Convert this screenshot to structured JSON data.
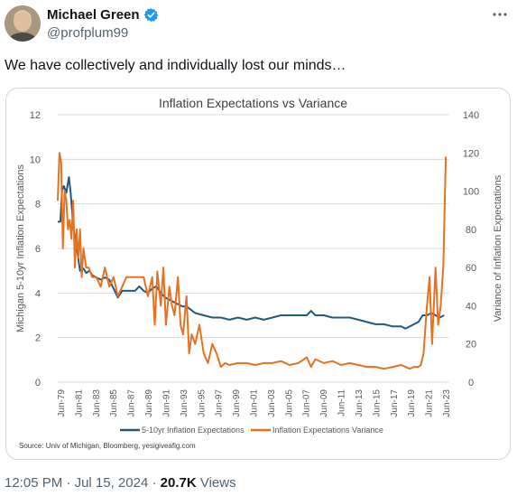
{
  "author": {
    "name": "Michael Green",
    "handle": "@profplum99",
    "verified_color": "#1d9bf0"
  },
  "menu_icon": "more-horizontal-icon",
  "tweet": {
    "text": "We have collectively and individually lost our minds…"
  },
  "meta": {
    "time": "12:05 PM",
    "sep1": " · ",
    "date": "Jul 15, 2024",
    "sep2": " · ",
    "views": "20.7K",
    "views_label": " Views"
  },
  "chart_data": {
    "type": "line",
    "title": "Inflation Expectations vs Variance",
    "ylabel_left": "Michigan 5-10yr Inflation Expectations",
    "ylabel_right": "Variance of Inflation Expectations",
    "y_left_ticks": [
      "0",
      "2",
      "4",
      "6",
      "8",
      "10",
      "12"
    ],
    "y_right_ticks": [
      "0",
      "20",
      "40",
      "60",
      "80",
      "100",
      "120",
      "140"
    ],
    "ylim_left": [
      0,
      12
    ],
    "ylim_right": [
      0,
      140
    ],
    "x_ticks": [
      "Jun-79",
      "Jun-81",
      "Jun-83",
      "Jun-85",
      "Jun-87",
      "Jun-89",
      "Jun-91",
      "Jun-93",
      "Jun-95",
      "Jun-97",
      "Jun-99",
      "Jun-01",
      "Jun-03",
      "Jun-05",
      "Jun-07",
      "Jun-09",
      "Jun-11",
      "Jun-13",
      "Jun-15",
      "Jun-17",
      "Jun-19",
      "Jun-21",
      "Jun-23"
    ],
    "xlim": [
      1979.0,
      2024.5
    ],
    "grid": true,
    "legend_position": "bottom",
    "source": "Source: Univ of Michigan, Bloomberg, yesigiveafig.com",
    "series": [
      {
        "name": "5-10yr Inflation Expectations",
        "axis": "left",
        "color": "#1f5a82",
        "x": [
          1979.0,
          1979.3,
          1979.5,
          1979.7,
          1980.0,
          1980.3,
          1980.5,
          1980.8,
          1981.0,
          1981.3,
          1981.6,
          1982.0,
          1982.3,
          1982.7,
          1983.0,
          1983.5,
          1984.0,
          1984.5,
          1985.0,
          1985.5,
          1986.0,
          1986.5,
          1987.0,
          1987.5,
          1988.0,
          1988.5,
          1989.0,
          1989.5,
          1990.0,
          1990.5,
          1991.0,
          1991.5,
          1992.0,
          1992.5,
          1993.0,
          1993.5,
          1994.0,
          1995.0,
          1996.0,
          1997.0,
          1998.0,
          1999.0,
          2000.0,
          2001.0,
          2002.0,
          2003.0,
          2004.0,
          2005.0,
          2006.0,
          2007.0,
          2008.0,
          2008.5,
          2009.0,
          2010.0,
          2011.0,
          2012.0,
          2013.0,
          2014.0,
          2015.0,
          2016.0,
          2017.0,
          2018.0,
          2019.0,
          2019.5,
          2020.0,
          2020.5,
          2021.0,
          2021.5,
          2022.0,
          2022.5,
          2023.0,
          2023.5,
          2024.0
        ],
        "y": [
          7.2,
          7.2,
          8.6,
          8.8,
          8.5,
          9.2,
          8.5,
          7.0,
          6.5,
          5.8,
          5.0,
          5.1,
          4.9,
          5.0,
          4.8,
          4.7,
          4.6,
          4.7,
          4.6,
          4.2,
          3.8,
          4.1,
          4.1,
          4.1,
          4.1,
          4.3,
          4.1,
          4.0,
          4.2,
          4.3,
          4.0,
          3.8,
          3.7,
          3.6,
          3.5,
          3.4,
          3.4,
          3.1,
          3.0,
          2.9,
          2.9,
          2.8,
          2.9,
          2.8,
          2.9,
          2.8,
          2.9,
          3.0,
          3.0,
          3.0,
          3.0,
          3.2,
          3.0,
          3.0,
          2.9,
          2.9,
          2.9,
          2.8,
          2.7,
          2.6,
          2.6,
          2.5,
          2.5,
          2.4,
          2.5,
          2.6,
          2.7,
          3.0,
          3.0,
          3.1,
          3.0,
          2.9,
          3.0
        ]
      },
      {
        "name": "Inflation Expectations Variance",
        "axis": "right",
        "color": "#e8711f",
        "x": [
          1979.0,
          1979.2,
          1979.4,
          1979.6,
          1979.8,
          1980.0,
          1980.2,
          1980.4,
          1980.6,
          1980.8,
          1981.0,
          1981.2,
          1981.4,
          1981.6,
          1981.8,
          1982.0,
          1982.3,
          1982.6,
          1983.0,
          1983.5,
          1984.0,
          1984.5,
          1985.0,
          1985.5,
          1986.0,
          1986.5,
          1987.0,
          1988.0,
          1989.0,
          1989.5,
          1990.0,
          1990.3,
          1990.6,
          1991.0,
          1991.3,
          1991.6,
          1992.0,
          1992.3,
          1992.6,
          1993.0,
          1993.3,
          1993.6,
          1994.0,
          1994.3,
          1994.6,
          1995.0,
          1995.5,
          1996.0,
          1996.5,
          1997.0,
          1997.5,
          1998.0,
          1998.5,
          1999.0,
          2000.0,
          2001.0,
          2002.0,
          2003.0,
          2004.0,
          2005.0,
          2006.0,
          2007.0,
          2008.0,
          2008.5,
          2009.0,
          2010.0,
          2011.0,
          2012.0,
          2013.0,
          2014.0,
          2015.0,
          2016.0,
          2017.0,
          2018.0,
          2019.0,
          2020.0,
          2020.5,
          2021.0,
          2021.3,
          2021.6,
          2022.0,
          2022.3,
          2022.6,
          2023.0,
          2023.3,
          2023.6,
          2023.9,
          2024.2
        ],
        "y": [
          95,
          120,
          115,
          70,
          100,
          95,
          80,
          85,
          75,
          95,
          60,
          80,
          65,
          80,
          55,
          70,
          60,
          60,
          55,
          55,
          50,
          60,
          50,
          55,
          45,
          50,
          55,
          55,
          55,
          45,
          55,
          30,
          58,
          40,
          60,
          30,
          50,
          40,
          35,
          55,
          30,
          25,
          45,
          15,
          25,
          20,
          30,
          15,
          10,
          20,
          15,
          8,
          10,
          9,
          10,
          10,
          9,
          10,
          10,
          11,
          9,
          10,
          13,
          8,
          12,
          10,
          11,
          9,
          10,
          9,
          8,
          8,
          7,
          8,
          9,
          7,
          8,
          8,
          9,
          15,
          40,
          55,
          20,
          60,
          30,
          40,
          60,
          118
        ]
      }
    ]
  }
}
